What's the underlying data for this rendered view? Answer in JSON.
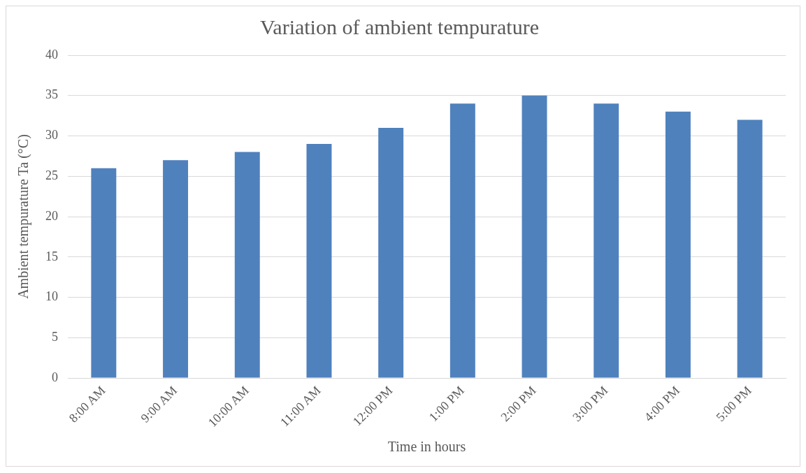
{
  "chart_data": {
    "type": "bar",
    "title": "Variation of ambient tempurature",
    "xlabel": "Time in hours",
    "ylabel": "Ambient tempurature Ta (°C)",
    "categories": [
      "8:00 AM",
      "9:00 AM",
      "10:00 AM",
      "11:00 AM",
      "12:00 PM",
      "1:00 PM",
      "2:00 PM",
      "3:00 PM",
      "4:00 PM",
      "5:00 PM"
    ],
    "values": [
      26,
      27,
      28,
      29,
      31,
      34,
      35,
      34,
      33,
      32
    ],
    "color": "#4f81bd",
    "ylim": [
      0,
      40
    ],
    "yticks": [
      0,
      5,
      10,
      15,
      20,
      25,
      30,
      35,
      40
    ],
    "grid": "y",
    "legend": false
  }
}
